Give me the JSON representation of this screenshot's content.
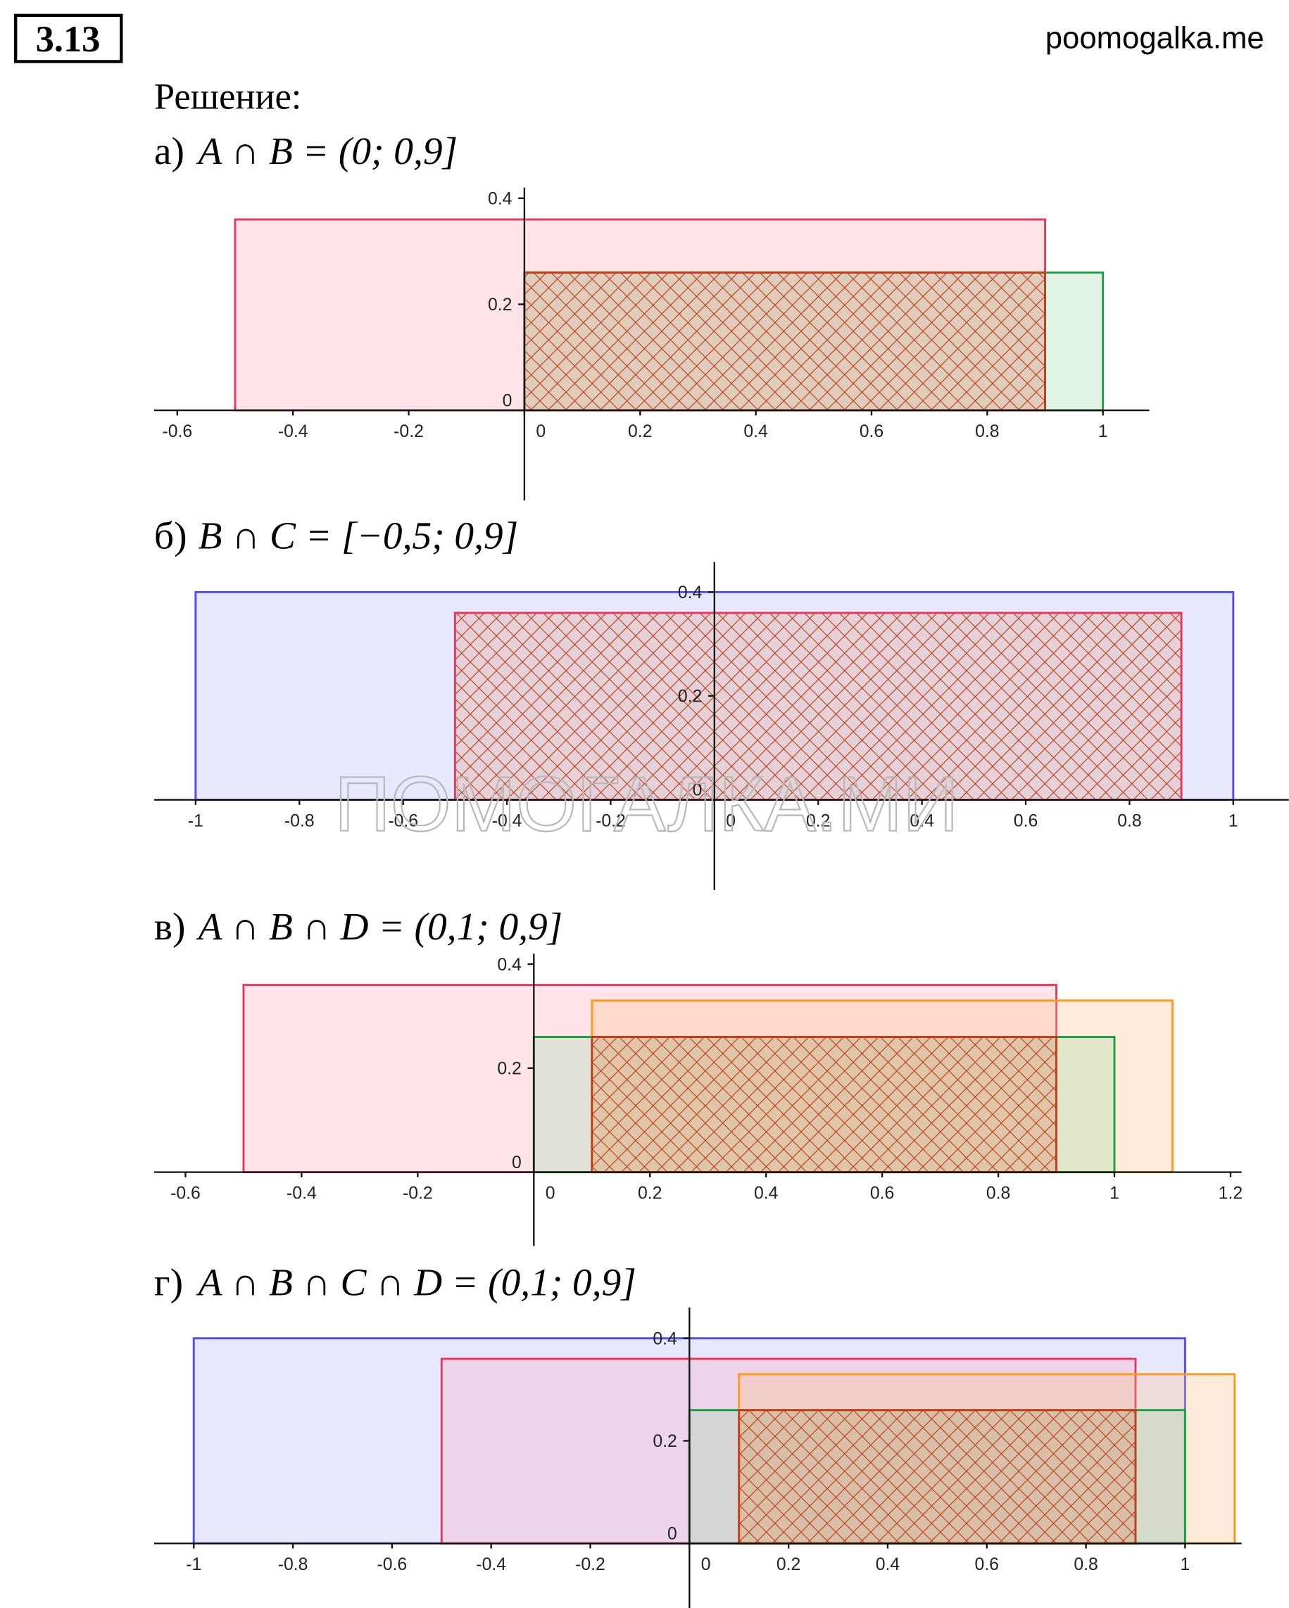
{
  "header": {
    "number": "3.13",
    "site": "poomogalka.me"
  },
  "solution_label": "Решение:",
  "watermark": "ПОМОГАЛКА.МИ",
  "parts": [
    {
      "label": "а)",
      "formula": "A ∩ B = (0; 0,9]",
      "xlim": [
        -0.64,
        1.08
      ],
      "ylim": [
        -0.17,
        0.42
      ],
      "xticks": [
        -0.6,
        -0.4,
        -0.2,
        0,
        0.2,
        0.4,
        0.6,
        0.8,
        1
      ],
      "yticks": [
        0,
        0.2,
        0.4
      ],
      "rects": [
        {
          "from": -0.5,
          "to": 0.9,
          "height": 0.36,
          "color": "#e8375a"
        },
        {
          "from": 0,
          "to": 1,
          "height": 0.26,
          "color": "#1aa040"
        },
        {
          "from": 0,
          "to": 0.9,
          "height": 0.26,
          "color": "#c0401a",
          "hatch": true
        }
      ]
    },
    {
      "label": "б)",
      "formula": "B ∩ C = [−0,5; 0,9]",
      "xlim": [
        -1.08,
        1.107
      ],
      "ylim": [
        -0.174,
        0.458
      ],
      "xticks": [
        -1,
        -0.8,
        -0.6,
        -0.4,
        -0.2,
        0,
        0.2,
        0.4,
        0.6,
        0.8,
        1
      ],
      "yticks": [
        0,
        0.2,
        0.4
      ],
      "rects": [
        {
          "from": -1,
          "to": 1,
          "height": 0.4,
          "color": "#5050e8"
        },
        {
          "from": -0.5,
          "to": 0.9,
          "height": 0.36,
          "color": "#e8375a",
          "hatch": true
        }
      ]
    },
    {
      "label": "в)",
      "formula": "A ∩ B ∩ D = (0,1; 0,9]",
      "xlim": [
        -0.654,
        1.219
      ],
      "ylim": [
        -0.142,
        0.42
      ],
      "xticks": [
        -0.6,
        -0.4,
        -0.2,
        0,
        0.2,
        0.4,
        0.6,
        0.8,
        1,
        1.2
      ],
      "yticks": [
        0,
        0.2,
        0.4
      ],
      "rects": [
        {
          "from": -0.5,
          "to": 0.9,
          "height": 0.36,
          "color": "#e8375a"
        },
        {
          "from": 0.1,
          "to": 1.1,
          "height": 0.33,
          "color": "#ff9a20"
        },
        {
          "from": 0,
          "to": 1,
          "height": 0.26,
          "color": "#1aa040"
        },
        {
          "from": 0.1,
          "to": 0.9,
          "height": 0.26,
          "color": "#c0401a",
          "hatch": true
        }
      ]
    },
    {
      "label": "г)",
      "formula": "A ∩ B ∩ C ∩ D = (0,1; 0,9]",
      "xlim": [
        -1.08,
        1.114
      ],
      "ylim": [
        -0.126,
        0.46
      ],
      "xticks": [
        -1,
        -0.8,
        -0.6,
        -0.4,
        -0.2,
        0,
        0.2,
        0.4,
        0.6,
        0.8,
        1
      ],
      "yticks": [
        0,
        0.2,
        0.4
      ],
      "rects": [
        {
          "from": -1,
          "to": 1,
          "height": 0.4,
          "color": "#5050e8"
        },
        {
          "from": -0.5,
          "to": 0.9,
          "height": 0.36,
          "color": "#e8375a"
        },
        {
          "from": 0.1,
          "to": 1.1,
          "height": 0.33,
          "color": "#ff9a20"
        },
        {
          "from": 0,
          "to": 1,
          "height": 0.26,
          "color": "#1aa040"
        },
        {
          "from": 0.1,
          "to": 0.9,
          "height": 0.26,
          "color": "#c0401a",
          "hatch": true
        }
      ]
    }
  ]
}
